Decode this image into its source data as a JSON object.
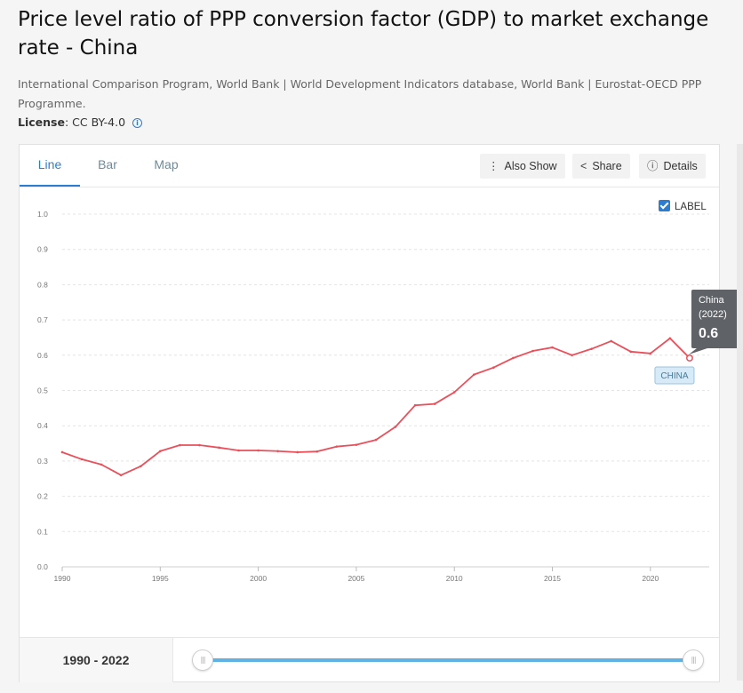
{
  "page": {
    "title": "Price level ratio of PPP conversion factor (GDP) to market exchange rate - China",
    "source": "International Comparison Program, World Bank | World Development Indicators database, World Bank | Eurostat-OECD PPP Programme.",
    "license_label": "License",
    "license_value": ": CC BY-4.0",
    "info_icon": "info-icon"
  },
  "tabs": [
    {
      "label": "Line",
      "active": true
    },
    {
      "label": "Bar",
      "active": false
    },
    {
      "label": "Map",
      "active": false
    }
  ],
  "toolbar": {
    "also_show": "Also Show",
    "share": "Share",
    "details": "Details",
    "icons": {
      "also_show": "vertical-dots-icon",
      "share": "share-icon",
      "details": "info-icon"
    }
  },
  "label_toggle": {
    "label": "LABEL",
    "checked": true
  },
  "chart_data": {
    "type": "line",
    "x": [
      1990,
      1991,
      1992,
      1993,
      1994,
      1995,
      1996,
      1997,
      1998,
      1999,
      2000,
      2001,
      2002,
      2003,
      2004,
      2005,
      2006,
      2007,
      2008,
      2009,
      2010,
      2011,
      2012,
      2013,
      2014,
      2015,
      2016,
      2017,
      2018,
      2019,
      2020,
      2021,
      2022
    ],
    "series": [
      {
        "name": "China",
        "color": "#e8505b",
        "values": [
          0.325,
          0.305,
          0.29,
          0.26,
          0.285,
          0.328,
          0.345,
          0.345,
          0.338,
          0.33,
          0.33,
          0.328,
          0.325,
          0.327,
          0.341,
          0.346,
          0.36,
          0.397,
          0.458,
          0.462,
          0.495,
          0.545,
          0.565,
          0.592,
          0.612,
          0.622,
          0.6,
          0.618,
          0.64,
          0.61,
          0.605,
          0.648,
          0.592
        ]
      }
    ],
    "xticks": [
      1990,
      1995,
      2000,
      2005,
      2010,
      2015,
      2020
    ],
    "yticks": [
      "0.0",
      "0.1",
      "0.2",
      "0.3",
      "0.4",
      "0.5",
      "0.6",
      "0.7",
      "0.8",
      "0.9",
      "1.0"
    ],
    "xlim": [
      1990,
      2023
    ],
    "ylim": [
      0,
      1.0
    ],
    "grid": true,
    "end_label": "CHINA",
    "tooltip": {
      "name": "China",
      "year": "(2022)",
      "value": "0.6"
    }
  },
  "footer": {
    "range": "1990 - 2022",
    "handle_glyph": "|||"
  }
}
